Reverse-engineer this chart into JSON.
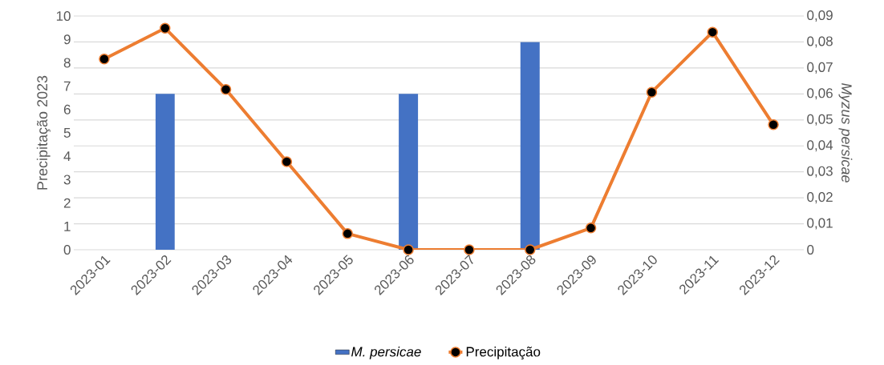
{
  "chart_data": {
    "type": "bar",
    "categories": [
      "2023-01",
      "2023-02",
      "2023-03",
      "2023-04",
      "2023-05",
      "2023-06",
      "2023-07",
      "2023-08",
      "2023-09",
      "2023-10",
      "2023-11",
      "2023-12"
    ],
    "ylabel": "Precipitação 2023",
    "y2label": "Myzus persicae",
    "ylim": [
      0,
      10
    ],
    "yticks": [
      0,
      1,
      2,
      3,
      4,
      5,
      6,
      7,
      8,
      9,
      10
    ],
    "y2lim": [
      0,
      0.09
    ],
    "y2ticks": [
      0,
      {
        "value": 0.01,
        "label": "0,01"
      },
      {
        "value": 0.02,
        "label": "0,02"
      },
      {
        "value": 0.03,
        "label": "0,03"
      },
      {
        "value": 0.04,
        "label": "0,04"
      },
      {
        "value": 0.05,
        "label": "0,05"
      },
      {
        "value": 0.06,
        "label": "0,06"
      },
      {
        "value": 0.07,
        "label": "0,07"
      },
      {
        "value": 0.08,
        "label": "0,08"
      },
      {
        "value": 0.09,
        "label": "0,09"
      }
    ],
    "grid": "y",
    "legend": "bottom",
    "series": [
      {
        "name": "M. persicae",
        "axis": "y2",
        "color": "#4472c4",
        "values": [
          null,
          0.06,
          null,
          null,
          null,
          0.06,
          null,
          0.08,
          null,
          null,
          null,
          null
        ]
      },
      {
        "name": "Precipitação",
        "type": "line",
        "color": "#ed7d31",
        "marker": "circle",
        "line_style": "solid",
        "values": [
          8.16,
          9.48,
          6.86,
          3.77,
          0.69,
          0,
          0,
          0,
          0.93,
          6.74,
          9.31,
          5.35
        ]
      }
    ]
  }
}
